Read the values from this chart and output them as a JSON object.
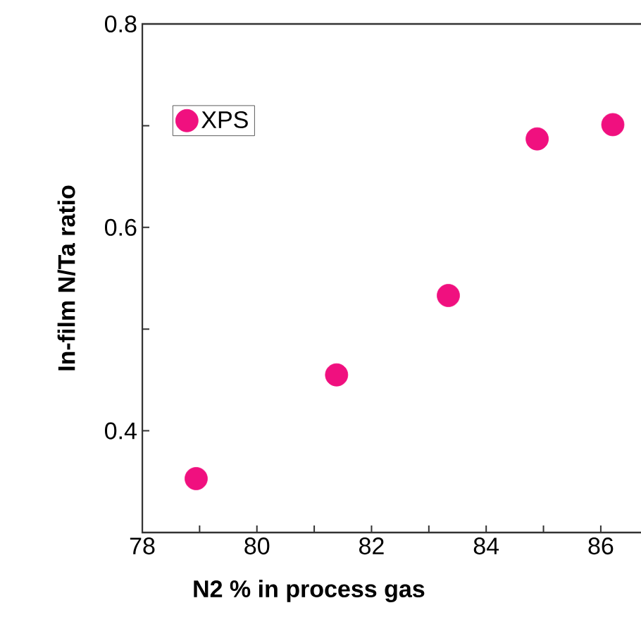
{
  "chart_data": {
    "type": "scatter",
    "xlabel": "N2 % in process gas",
    "ylabel": "In-film N/Ta ratio",
    "x": [
      78.94,
      81.39,
      83.34,
      84.89,
      86.21
    ],
    "series": [
      {
        "name": "XPS",
        "color": "#f0107f",
        "values": [
          0.353,
          0.455,
          0.533,
          0.687,
          0.701
        ]
      }
    ],
    "xlim": [
      78,
      86.8
    ],
    "ylim": [
      0.3,
      0.8
    ],
    "xticks": [
      78,
      {
        "value": 79,
        "label": null
      },
      80,
      {
        "value": 81,
        "label": null
      },
      82,
      {
        "value": 83,
        "label": null
      },
      84,
      {
        "value": 85,
        "label": null
      },
      86
    ],
    "yticks": [
      0.4,
      {
        "value": 0.5,
        "label": null
      },
      0.6,
      {
        "value": 0.7,
        "label": null
      },
      0.8
    ],
    "legend": "top left",
    "marker": "circle",
    "grid": false
  }
}
